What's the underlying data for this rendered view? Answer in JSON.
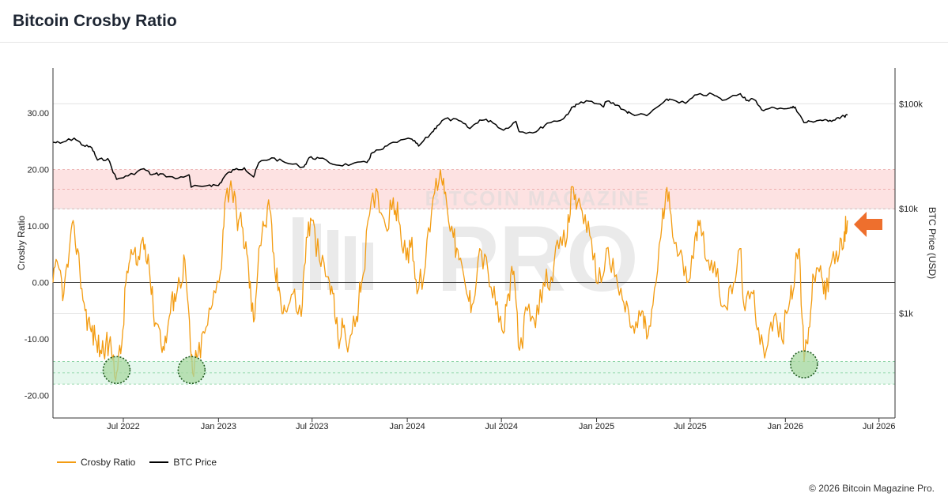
{
  "page": {
    "title": "Bitcoin Crosby Ratio",
    "copyright": "© 2026 Bitcoin Magazine Pro."
  },
  "colors": {
    "crosby": "#f39c12",
    "price": "#000000",
    "overbought_band": "#fde2e2",
    "oversold_band": "#e6f8ee",
    "circle_fill": "#a8d8a0",
    "circle_stroke": "#1f5a1f",
    "arrow": "#ee6f2d",
    "watermark": "#d9d9d9"
  },
  "watermark": {
    "top": "BITCOIN MAGAZINE",
    "main": "PRO",
    "icon": "bitcoin-logo-icon"
  },
  "indicator_icon": "right-pointing-arrow-left-icon",
  "chart_data": {
    "type": "line",
    "title": "Bitcoin Crosby Ratio",
    "x_ticks": [
      "Jul 2022",
      "Jan 2023",
      "Jul 2023",
      "Jan 2024",
      "Jul 2024",
      "Jan 2025",
      "Jul 2025",
      "Jan 2026",
      "Jul 2026"
    ],
    "x_range": [
      "2022-02-15",
      "2026-08-01"
    ],
    "y_left": {
      "label": "Crosby Ratio",
      "range": [
        -24,
        38
      ],
      "ticks": [
        30,
        20,
        10,
        0,
        -10,
        -20
      ],
      "tick_labels": [
        "30.00",
        "20.00",
        "10.00",
        "0.00",
        "-10.00",
        "-20.00"
      ]
    },
    "y_right": {
      "label": "BTC Price (USD)",
      "scale": "log",
      "range": [
        100,
        220000
      ],
      "ticks": [
        100000,
        10000,
        1000
      ],
      "tick_labels": [
        "$100k",
        "$10k",
        "$1k"
      ]
    },
    "bands": [
      {
        "name": "overbought",
        "from": 13,
        "to": 20,
        "dashed_lines": [
          13,
          16.5,
          20
        ]
      },
      {
        "name": "oversold",
        "from": -18,
        "to": -14,
        "dashed_lines": [
          -14,
          -16,
          -18
        ]
      }
    ],
    "zero_line": 0,
    "highlight_circles": [
      {
        "date": "2022-06-18",
        "value": -15.5
      },
      {
        "date": "2022-11-10",
        "value": -15.5
      },
      {
        "date": "2026-02-06",
        "value": -14.5
      }
    ],
    "series": [
      {
        "name": "Crosby Ratio",
        "axis": "left",
        "points": [
          [
            "2022-02-15",
            0
          ],
          [
            "2022-02-25",
            3
          ],
          [
            "2022-03-08",
            -2
          ],
          [
            "2022-03-18",
            5
          ],
          [
            "2022-03-28",
            10
          ],
          [
            "2022-04-08",
            2
          ],
          [
            "2022-04-18",
            -5
          ],
          [
            "2022-04-28",
            -8
          ],
          [
            "2022-05-08",
            -10
          ],
          [
            "2022-05-18",
            -12
          ],
          [
            "2022-05-28",
            -11
          ],
          [
            "2022-06-08",
            -12
          ],
          [
            "2022-06-18",
            -16
          ],
          [
            "2022-06-28",
            -11
          ],
          [
            "2022-07-08",
            2
          ],
          [
            "2022-07-18",
            5
          ],
          [
            "2022-07-28",
            3
          ],
          [
            "2022-08-08",
            8
          ],
          [
            "2022-08-18",
            5
          ],
          [
            "2022-08-28",
            -5
          ],
          [
            "2022-09-08",
            -8
          ],
          [
            "2022-09-18",
            -12
          ],
          [
            "2022-09-28",
            -6
          ],
          [
            "2022-10-08",
            -2
          ],
          [
            "2022-10-18",
            0
          ],
          [
            "2022-10-28",
            4
          ],
          [
            "2022-11-08",
            -12
          ],
          [
            "2022-11-12",
            -16
          ],
          [
            "2022-11-22",
            -13
          ],
          [
            "2022-12-05",
            -9
          ],
          [
            "2022-12-20",
            -4
          ],
          [
            "2023-01-05",
            2
          ],
          [
            "2023-01-13",
            14
          ],
          [
            "2023-01-25",
            18
          ],
          [
            "2023-02-05",
            12
          ],
          [
            "2023-02-15",
            10
          ],
          [
            "2023-02-25",
            5
          ],
          [
            "2023-03-05",
            -3
          ],
          [
            "2023-03-10",
            -7
          ],
          [
            "2023-03-20",
            6
          ],
          [
            "2023-03-30",
            10
          ],
          [
            "2023-04-10",
            13
          ],
          [
            "2023-04-20",
            2
          ],
          [
            "2023-04-30",
            -2
          ],
          [
            "2023-05-10",
            -5
          ],
          [
            "2023-05-25",
            -2
          ],
          [
            "2023-06-10",
            -6
          ],
          [
            "2023-06-20",
            8
          ],
          [
            "2023-06-30",
            11
          ],
          [
            "2023-07-15",
            4
          ],
          [
            "2023-07-30",
            1
          ],
          [
            "2023-08-10",
            -2
          ],
          [
            "2023-08-20",
            -10
          ],
          [
            "2023-08-30",
            -8
          ],
          [
            "2023-09-10",
            -11
          ],
          [
            "2023-09-25",
            -6
          ],
          [
            "2023-10-05",
            0
          ],
          [
            "2023-10-20",
            12
          ],
          [
            "2023-11-05",
            16
          ],
          [
            "2023-11-20",
            10
          ],
          [
            "2023-12-05",
            15
          ],
          [
            "2023-12-15",
            11
          ],
          [
            "2023-12-30",
            4
          ],
          [
            "2024-01-10",
            8
          ],
          [
            "2024-01-20",
            -2
          ],
          [
            "2024-02-05",
            3
          ],
          [
            "2024-02-20",
            15
          ],
          [
            "2024-03-05",
            20
          ],
          [
            "2024-03-15",
            16
          ],
          [
            "2024-03-30",
            8
          ],
          [
            "2024-04-10",
            4
          ],
          [
            "2024-04-25",
            -2
          ],
          [
            "2024-05-05",
            -4
          ],
          [
            "2024-05-20",
            6
          ],
          [
            "2024-06-05",
            2
          ],
          [
            "2024-06-20",
            -4
          ],
          [
            "2024-07-05",
            -9
          ],
          [
            "2024-07-15",
            -2
          ],
          [
            "2024-07-25",
            2
          ],
          [
            "2024-08-05",
            -12
          ],
          [
            "2024-08-20",
            -5
          ],
          [
            "2024-09-05",
            -8
          ],
          [
            "2024-09-20",
            0
          ],
          [
            "2024-10-05",
            1
          ],
          [
            "2024-10-20",
            6
          ],
          [
            "2024-11-05",
            8
          ],
          [
            "2024-11-15",
            17
          ],
          [
            "2024-11-25",
            14
          ],
          [
            "2024-12-10",
            12
          ],
          [
            "2024-12-25",
            4
          ],
          [
            "2025-01-10",
            0
          ],
          [
            "2025-01-20",
            6
          ],
          [
            "2025-02-05",
            1
          ],
          [
            "2025-02-20",
            -3
          ],
          [
            "2025-03-05",
            -6
          ],
          [
            "2025-03-15",
            -9
          ],
          [
            "2025-03-30",
            -5
          ],
          [
            "2025-04-08",
            -10
          ],
          [
            "2025-04-20",
            -4
          ],
          [
            "2025-05-05",
            8
          ],
          [
            "2025-05-15",
            16
          ],
          [
            "2025-05-25",
            12
          ],
          [
            "2025-06-10",
            5
          ],
          [
            "2025-06-25",
            0
          ],
          [
            "2025-07-10",
            8
          ],
          [
            "2025-07-20",
            11
          ],
          [
            "2025-08-05",
            4
          ],
          [
            "2025-08-20",
            1
          ],
          [
            "2025-09-05",
            -4
          ],
          [
            "2025-09-20",
            -2
          ],
          [
            "2025-10-05",
            6
          ],
          [
            "2025-10-15",
            -5
          ],
          [
            "2025-10-30",
            -2
          ],
          [
            "2025-11-10",
            -8
          ],
          [
            "2025-11-25",
            -12
          ],
          [
            "2025-12-10",
            -6
          ],
          [
            "2025-12-25",
            -10
          ],
          [
            "2026-01-10",
            -3
          ],
          [
            "2026-01-20",
            2
          ],
          [
            "2026-01-28",
            6
          ],
          [
            "2026-02-06",
            -14
          ],
          [
            "2026-02-15",
            -8
          ],
          [
            "2026-02-25",
            1
          ],
          [
            "2026-03-10",
            3
          ],
          [
            "2026-03-20",
            -3
          ],
          [
            "2026-04-01",
            4
          ],
          [
            "2026-04-15",
            5
          ],
          [
            "2026-04-25",
            9
          ],
          [
            "2026-05-01",
            11
          ]
        ]
      },
      {
        "name": "BTC Price",
        "axis": "right",
        "points": [
          [
            "2022-02-15",
            43000
          ],
          [
            "2022-03-01",
            42000
          ],
          [
            "2022-03-28",
            47000
          ],
          [
            "2022-04-15",
            40000
          ],
          [
            "2022-05-01",
            38000
          ],
          [
            "2022-05-12",
            29000
          ],
          [
            "2022-06-01",
            30000
          ],
          [
            "2022-06-18",
            19000
          ],
          [
            "2022-07-10",
            20500
          ],
          [
            "2022-08-10",
            24000
          ],
          [
            "2022-08-25",
            21000
          ],
          [
            "2022-09-10",
            21500
          ],
          [
            "2022-10-10",
            19300
          ],
          [
            "2022-11-05",
            21000
          ],
          [
            "2022-11-09",
            16000
          ],
          [
            "2022-12-15",
            16800
          ],
          [
            "2023-01-01",
            16600
          ],
          [
            "2023-01-15",
            21000
          ],
          [
            "2023-02-01",
            23500
          ],
          [
            "2023-02-20",
            24500
          ],
          [
            "2023-03-10",
            20000
          ],
          [
            "2023-03-20",
            27500
          ],
          [
            "2023-04-14",
            30500
          ],
          [
            "2023-05-10",
            27500
          ],
          [
            "2023-06-15",
            25000
          ],
          [
            "2023-06-25",
            30500
          ],
          [
            "2023-07-15",
            30200
          ],
          [
            "2023-08-17",
            26000
          ],
          [
            "2023-09-15",
            26500
          ],
          [
            "2023-10-15",
            27500
          ],
          [
            "2023-10-25",
            34000
          ],
          [
            "2023-11-15",
            37000
          ],
          [
            "2023-12-05",
            43000
          ],
          [
            "2024-01-10",
            46000
          ],
          [
            "2024-01-23",
            39500
          ],
          [
            "2024-02-15",
            51500
          ],
          [
            "2024-02-28",
            62000
          ],
          [
            "2024-03-14",
            72000
          ],
          [
            "2024-04-10",
            69000
          ],
          [
            "2024-05-01",
            58000
          ],
          [
            "2024-05-20",
            70000
          ],
          [
            "2024-06-10",
            69000
          ],
          [
            "2024-07-05",
            56000
          ],
          [
            "2024-07-29",
            68000
          ],
          [
            "2024-08-05",
            54000
          ],
          [
            "2024-09-06",
            54000
          ],
          [
            "2024-09-28",
            65500
          ],
          [
            "2024-10-29",
            72000
          ],
          [
            "2024-11-12",
            88000
          ],
          [
            "2024-11-22",
            99000
          ],
          [
            "2024-12-17",
            106000
          ],
          [
            "2025-01-13",
            94000
          ],
          [
            "2025-01-21",
            106000
          ],
          [
            "2025-02-10",
            97000
          ],
          [
            "2025-02-28",
            84000
          ],
          [
            "2025-03-10",
            80000
          ],
          [
            "2025-04-08",
            77000
          ],
          [
            "2025-05-10",
            103000
          ],
          [
            "2025-05-22",
            111000
          ],
          [
            "2025-06-22",
            101000
          ],
          [
            "2025-07-14",
            122000
          ],
          [
            "2025-08-14",
            123000
          ],
          [
            "2025-09-01",
            108000
          ],
          [
            "2025-10-06",
            125000
          ],
          [
            "2025-10-20",
            108000
          ],
          [
            "2025-11-01",
            110000
          ],
          [
            "2025-11-20",
            86000
          ],
          [
            "2025-12-10",
            92000
          ],
          [
            "2026-01-10",
            91000
          ],
          [
            "2026-01-20",
            93000
          ],
          [
            "2026-02-06",
            66000
          ],
          [
            "2026-02-20",
            68000
          ],
          [
            "2026-03-10",
            70000
          ],
          [
            "2026-03-25",
            68000
          ],
          [
            "2026-04-10",
            73000
          ],
          [
            "2026-04-25",
            76000
          ],
          [
            "2026-05-01",
            78000
          ]
        ]
      }
    ],
    "legend": [
      {
        "label": "Crosby Ratio",
        "color": "#f39c12"
      },
      {
        "label": "BTC Price",
        "color": "#000000"
      }
    ]
  }
}
